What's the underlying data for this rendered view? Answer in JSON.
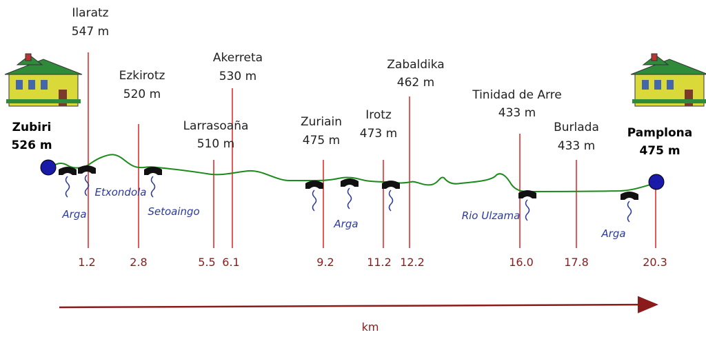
{
  "start": {
    "name": "Zubiri",
    "elevation": "526 m"
  },
  "end": {
    "name": "Pamplona",
    "elevation": "475 m"
  },
  "stops": [
    {
      "name": "Ilaratz",
      "elevation": "547 m",
      "km": "1.2"
    },
    {
      "name": "Ezkirotz",
      "elevation": "520 m",
      "km": "2.8"
    },
    {
      "name": "Larrasoaña",
      "elevation": "510 m",
      "km": "5.5"
    },
    {
      "name": "Akerreta",
      "elevation": "530 m",
      "km": "6.1"
    },
    {
      "name": "Zuriain",
      "elevation": "475 m",
      "km": "9.2"
    },
    {
      "name": "Irotz",
      "elevation": "473 m",
      "km": "11.2"
    },
    {
      "name": "Zabaldika",
      "elevation": "462 m",
      "km": "12.2"
    },
    {
      "name": "Tinidad de Arre",
      "elevation": "433 m",
      "km": "16.0"
    },
    {
      "name": "Burlada",
      "elevation": "433 m",
      "km": "17.8"
    }
  ],
  "end_km": "20.3",
  "rivers": {
    "arga_1": "Arga",
    "etxondola": "Etxondola",
    "setoaingo": "Setoaingo",
    "arga_2": "Arga",
    "rio_ulzama": "Rio Ulzama",
    "arga_3": "Arga"
  },
  "axis": {
    "label": "km"
  },
  "colors": {
    "marker": "#e0201f",
    "route": "#1a8a1a",
    "endpoint": "#1a1aa8",
    "axis": "#8b1a1a",
    "river": "#2b3a99"
  }
}
